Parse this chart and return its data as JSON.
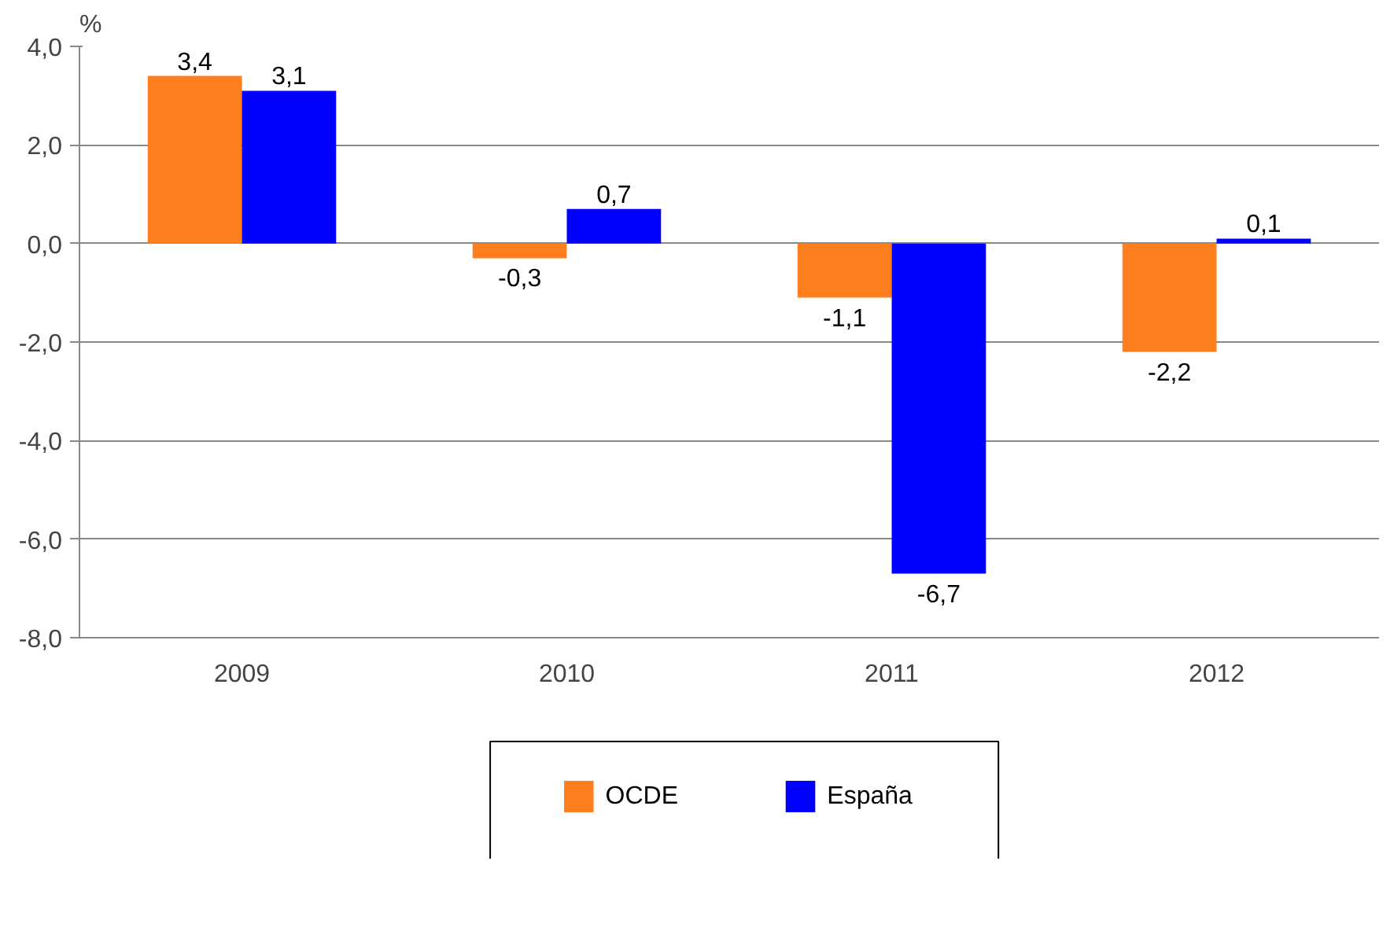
{
  "chart_data": {
    "type": "bar",
    "ylabel": "%",
    "categories": [
      "2009",
      "2010",
      "2011",
      "2012"
    ],
    "series": [
      {
        "name": "OCDE",
        "color": "#ff7f1e",
        "values": [
          3.4,
          -0.3,
          -1.1,
          -2.2
        ],
        "value_labels": [
          "3,4",
          "-0,3",
          "-1,1",
          "-2,2"
        ]
      },
      {
        "name": "España",
        "color": "#0000ff",
        "values": [
          3.1,
          0.7,
          -6.7,
          0.1
        ],
        "value_labels": [
          "3,1",
          "0,7",
          "-6,7",
          "0,1"
        ]
      }
    ],
    "ylim": [
      -8,
      4
    ],
    "yticks": [
      {
        "value": -8,
        "label": "-8,0"
      },
      {
        "value": -6,
        "label": "-6,0"
      },
      {
        "value": -4,
        "label": "-4,0"
      },
      {
        "value": -2,
        "label": "-2,0"
      },
      {
        "value": 0,
        "label": "0,0"
      },
      {
        "value": 2,
        "label": "2,0"
      },
      {
        "value": 4,
        "label": "4,0"
      }
    ],
    "grid": "y",
    "legend": "bottom"
  }
}
